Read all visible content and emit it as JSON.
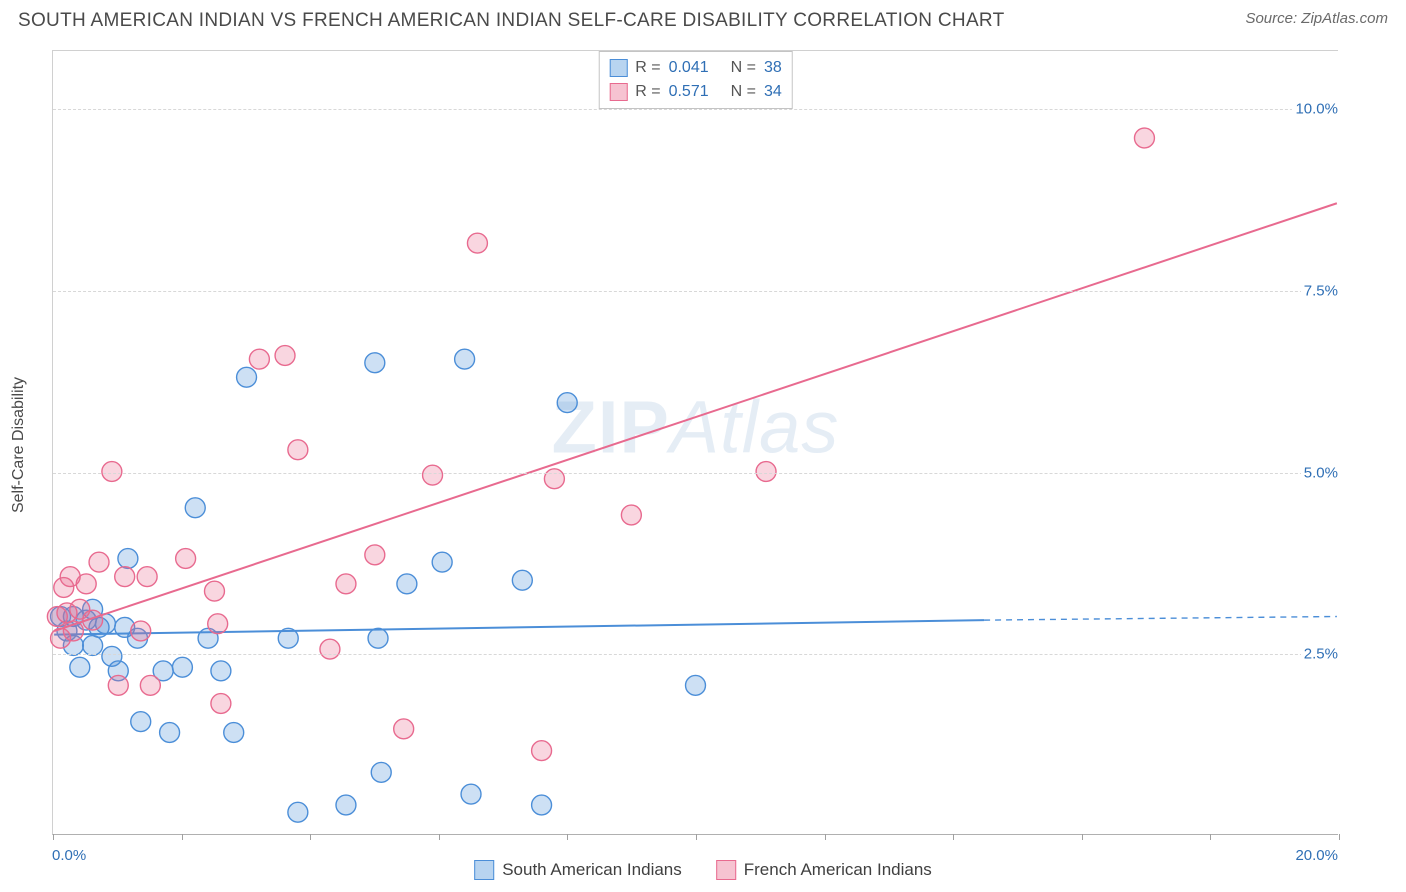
{
  "title": "SOUTH AMERICAN INDIAN VS FRENCH AMERICAN INDIAN SELF-CARE DISABILITY CORRELATION CHART",
  "source_label": "Source: ZipAtlas.com",
  "yaxis_title": "Self-Care Disability",
  "watermark": {
    "bold": "ZIP",
    "light": "Atlas"
  },
  "chart": {
    "type": "scatter",
    "xlim": [
      0,
      20
    ],
    "ylim": [
      0,
      10.8
    ],
    "x_ticks": [
      0,
      2,
      4,
      6,
      8,
      10,
      12,
      14,
      16,
      18,
      20
    ],
    "y_gridlines": [
      2.5,
      5.0,
      7.5,
      10.0
    ],
    "x_label_start": "0.0%",
    "x_label_end": "20.0%",
    "y_tick_labels": [
      "2.5%",
      "5.0%",
      "7.5%",
      "10.0%"
    ],
    "background_color": "#ffffff",
    "grid_color": "#d8d8d8",
    "axis_color": "#b0b0b0",
    "tick_label_color": "#2f6fb5",
    "marker_radius": 10,
    "marker_fill_opacity": 0.28,
    "marker_stroke_width": 1.4,
    "line_width": 2
  },
  "series": [
    {
      "id": "south",
      "label": "South American Indians",
      "color": "#4b8ed8",
      "fill": "#b8d4f0",
      "r_value": "0.041",
      "n_value": "38",
      "trend": {
        "x1": 0,
        "y1": 2.75,
        "x2": 14.5,
        "y2": 2.95,
        "dash_from_x": 14.5,
        "dash_to_x": 20,
        "dash_to_y": 3.0
      },
      "points": [
        [
          0.1,
          3.0
        ],
        [
          0.2,
          2.8
        ],
        [
          0.3,
          2.6
        ],
        [
          0.3,
          3.0
        ],
        [
          0.4,
          2.3
        ],
        [
          0.5,
          2.95
        ],
        [
          0.6,
          3.1
        ],
        [
          0.6,
          2.6
        ],
        [
          0.7,
          2.85
        ],
        [
          0.8,
          2.9
        ],
        [
          0.9,
          2.45
        ],
        [
          1.0,
          2.25
        ],
        [
          1.15,
          3.8
        ],
        [
          1.1,
          2.85
        ],
        [
          1.3,
          2.7
        ],
        [
          1.35,
          1.55
        ],
        [
          1.7,
          2.25
        ],
        [
          1.8,
          1.4
        ],
        [
          2.0,
          2.3
        ],
        [
          2.2,
          4.5
        ],
        [
          2.4,
          2.7
        ],
        [
          2.6,
          2.25
        ],
        [
          2.8,
          1.4
        ],
        [
          3.0,
          6.3
        ],
        [
          3.65,
          2.7
        ],
        [
          3.8,
          0.3
        ],
        [
          4.55,
          0.4
        ],
        [
          5.0,
          6.5
        ],
        [
          5.05,
          2.7
        ],
        [
          5.1,
          0.85
        ],
        [
          5.5,
          3.45
        ],
        [
          6.05,
          3.75
        ],
        [
          6.4,
          6.55
        ],
        [
          6.5,
          0.55
        ],
        [
          7.3,
          3.5
        ],
        [
          7.6,
          0.4
        ],
        [
          8.0,
          5.95
        ],
        [
          10.0,
          2.05
        ]
      ]
    },
    {
      "id": "french",
      "label": "French American Indians",
      "color": "#e86a8f",
      "fill": "#f6c3d1",
      "r_value": "0.571",
      "n_value": "34",
      "trend": {
        "x1": 0,
        "y1": 2.8,
        "x2": 20,
        "y2": 8.7
      },
      "points": [
        [
          0.05,
          3.0
        ],
        [
          0.1,
          2.7
        ],
        [
          0.15,
          3.4
        ],
        [
          0.2,
          3.05
        ],
        [
          0.25,
          3.55
        ],
        [
          0.3,
          2.8
        ],
        [
          0.4,
          3.1
        ],
        [
          0.5,
          3.45
        ],
        [
          0.6,
          2.95
        ],
        [
          0.7,
          3.75
        ],
        [
          0.9,
          5.0
        ],
        [
          1.0,
          2.05
        ],
        [
          1.1,
          3.55
        ],
        [
          1.35,
          2.8
        ],
        [
          1.45,
          3.55
        ],
        [
          1.5,
          2.05
        ],
        [
          2.05,
          3.8
        ],
        [
          2.5,
          3.35
        ],
        [
          2.55,
          2.9
        ],
        [
          2.6,
          1.8
        ],
        [
          3.2,
          6.55
        ],
        [
          3.6,
          6.6
        ],
        [
          3.8,
          5.3
        ],
        [
          4.3,
          2.55
        ],
        [
          4.55,
          3.45
        ],
        [
          5.0,
          3.85
        ],
        [
          5.45,
          1.45
        ],
        [
          5.9,
          4.95
        ],
        [
          6.6,
          8.15
        ],
        [
          7.6,
          1.15
        ],
        [
          7.8,
          4.9
        ],
        [
          9.0,
          4.4
        ],
        [
          11.1,
          5.0
        ],
        [
          17.0,
          9.6
        ]
      ]
    }
  ],
  "stats_box": {
    "r_label": "R =",
    "n_label": "N ="
  },
  "legend": {
    "items": [
      "South American Indians",
      "French American Indians"
    ]
  }
}
